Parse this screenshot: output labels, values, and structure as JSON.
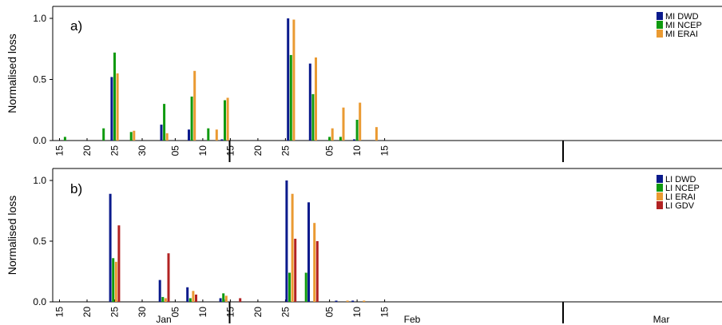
{
  "figure": {
    "months": [
      "Jan",
      "Feb",
      "Mar"
    ],
    "day_ticks": [
      {
        "day": 15,
        "label": "15"
      },
      {
        "day": 20,
        "label": "20"
      },
      {
        "day": 25,
        "label": "25"
      },
      {
        "day": 30,
        "label": "30"
      },
      {
        "day": 36,
        "label": "05"
      },
      {
        "day": 41,
        "label": "10"
      },
      {
        "day": 46,
        "label": "15"
      },
      {
        "day": 51,
        "label": "20"
      },
      {
        "day": 56,
        "label": "25"
      },
      {
        "day": 64,
        "label": "05"
      },
      {
        "day": 69,
        "label": "10"
      },
      {
        "day": 74,
        "label": "15"
      }
    ]
  },
  "chart_data": [
    {
      "type": "bar",
      "panel_label": "a)",
      "ylabel": "Normalised loss",
      "xlabel": "",
      "ylim": [
        0,
        1.0
      ],
      "yticks": [
        "0.0",
        "0.5",
        "1.0"
      ],
      "x_unit": "day count from 1 Jan (Feb 1 = 32, Mar 1 = 60)",
      "legend_position": "top-right",
      "series": [
        {
          "name": "MI DWD",
          "color": "#0a1a8c",
          "points": [
            {
              "day": 25,
              "value": 0.52
            },
            {
              "day": 34,
              "value": 0.13
            },
            {
              "day": 39,
              "value": 0.09
            },
            {
              "day": 45,
              "value": 0.01
            },
            {
              "day": 57,
              "value": 1.0
            },
            {
              "day": 61,
              "value": 0.63
            },
            {
              "day": 69,
              "value": 0.01
            }
          ]
        },
        {
          "name": "MI NCEP",
          "color": "#0f9a0f",
          "points": [
            {
              "day": 16,
              "value": 0.03
            },
            {
              "day": 23,
              "value": 0.1
            },
            {
              "day": 25,
              "value": 0.72
            },
            {
              "day": 28,
              "value": 0.07
            },
            {
              "day": 34,
              "value": 0.3
            },
            {
              "day": 39,
              "value": 0.36
            },
            {
              "day": 42,
              "value": 0.1
            },
            {
              "day": 45,
              "value": 0.33
            },
            {
              "day": 57,
              "value": 0.7
            },
            {
              "day": 61,
              "value": 0.38
            },
            {
              "day": 64,
              "value": 0.03
            },
            {
              "day": 66,
              "value": 0.03
            },
            {
              "day": 69,
              "value": 0.17
            }
          ]
        },
        {
          "name": "MI ERAI",
          "color": "#ea9a32",
          "points": [
            {
              "day": 25,
              "value": 0.55
            },
            {
              "day": 28,
              "value": 0.08
            },
            {
              "day": 34,
              "value": 0.06
            },
            {
              "day": 39,
              "value": 0.57
            },
            {
              "day": 43,
              "value": 0.09
            },
            {
              "day": 45,
              "value": 0.35
            },
            {
              "day": 57,
              "value": 0.99
            },
            {
              "day": 61,
              "value": 0.68
            },
            {
              "day": 64,
              "value": 0.1
            },
            {
              "day": 66,
              "value": 0.27
            },
            {
              "day": 69,
              "value": 0.31
            },
            {
              "day": 72,
              "value": 0.11
            }
          ]
        }
      ]
    },
    {
      "type": "bar",
      "panel_label": "b)",
      "ylabel": "Normalised loss",
      "xlabel": "",
      "ylim": [
        0,
        1.0
      ],
      "yticks": [
        "0.0",
        "0.5",
        "1.0"
      ],
      "x_unit": "day count from 1 Jan (Feb 1 = 32, Mar 1 = 60)",
      "legend_position": "top-right",
      "series": [
        {
          "name": "LI DWD",
          "color": "#0a1a8c",
          "points": [
            {
              "day": 25,
              "value": 0.89
            },
            {
              "day": 34,
              "value": 0.18
            },
            {
              "day": 39,
              "value": 0.12
            },
            {
              "day": 45,
              "value": 0.03
            },
            {
              "day": 46,
              "value": 0.02
            },
            {
              "day": 57,
              "value": 1.0
            },
            {
              "day": 61,
              "value": 0.82
            },
            {
              "day": 66,
              "value": 0.01
            },
            {
              "day": 69,
              "value": 0.01
            }
          ]
        },
        {
          "name": "LI NCEP",
          "color": "#0f9a0f",
          "points": [
            {
              "day": 25,
              "value": 0.36
            },
            {
              "day": 34,
              "value": 0.04
            },
            {
              "day": 39,
              "value": 0.03
            },
            {
              "day": 45,
              "value": 0.07
            },
            {
              "day": 57,
              "value": 0.24
            },
            {
              "day": 60,
              "value": 0.24
            }
          ]
        },
        {
          "name": "LI ERAI",
          "color": "#ea9a32",
          "points": [
            {
              "day": 25,
              "value": 0.33
            },
            {
              "day": 34,
              "value": 0.03
            },
            {
              "day": 39,
              "value": 0.09
            },
            {
              "day": 45,
              "value": 0.05
            },
            {
              "day": 57,
              "value": 0.89
            },
            {
              "day": 61,
              "value": 0.65
            },
            {
              "day": 67,
              "value": 0.01
            },
            {
              "day": 70,
              "value": 0.01
            }
          ]
        },
        {
          "name": "LI GDV",
          "color": "#b22222",
          "points": [
            {
              "day": 25,
              "value": 0.63
            },
            {
              "day": 34,
              "value": 0.4
            },
            {
              "day": 39,
              "value": 0.06
            },
            {
              "day": 47,
              "value": 0.03
            },
            {
              "day": 57,
              "value": 0.52
            },
            {
              "day": 61,
              "value": 0.5
            }
          ]
        }
      ]
    }
  ]
}
